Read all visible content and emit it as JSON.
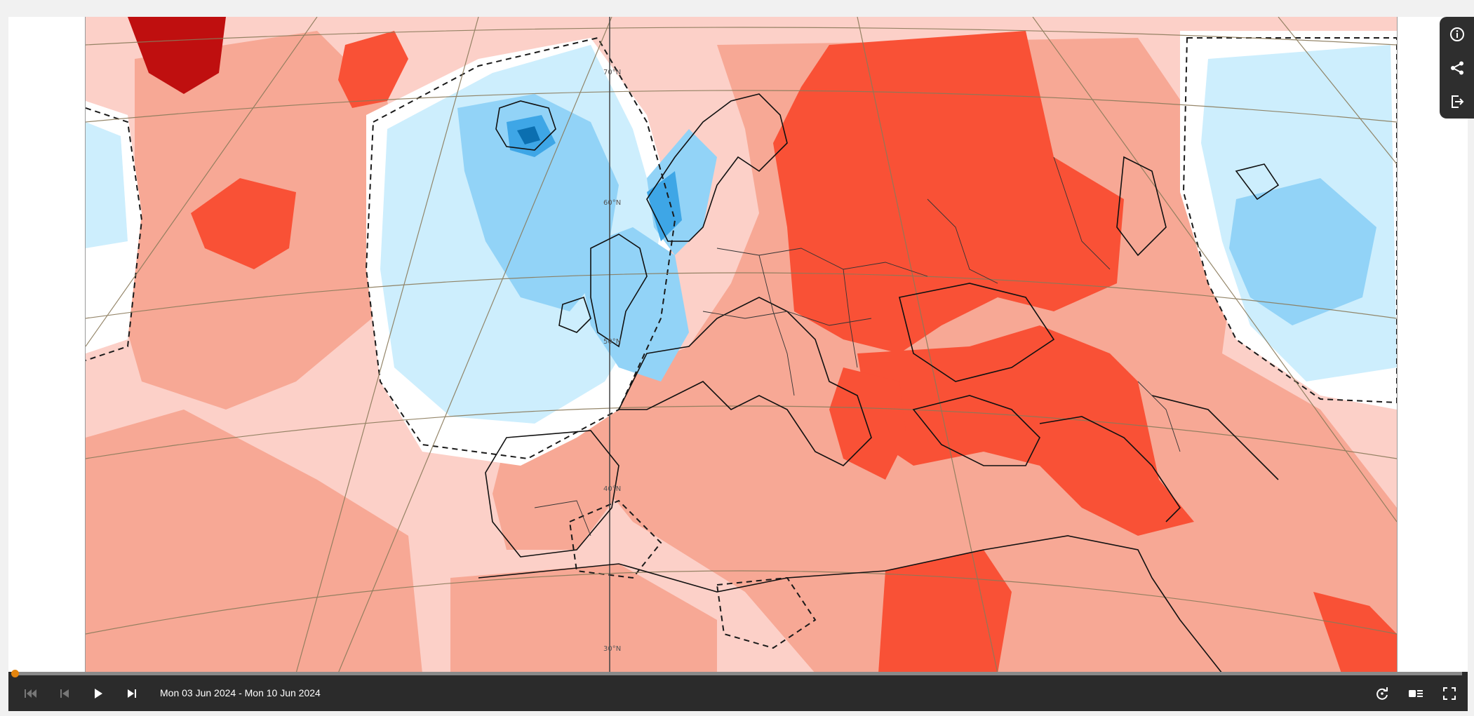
{
  "player": {
    "date_range": "Mon 03 Jun 2024 - Mon 10 Jun 2024",
    "progress": 0
  },
  "map": {
    "latitude_labels": [
      "70°N",
      "60°N",
      "50°N",
      "40°N",
      "30°N"
    ],
    "colors": {
      "warm_1": "#fcd0c8",
      "warm_2": "#f7a895",
      "warm_3": "#f95136",
      "warm_4": "#bf0f0f",
      "cool_1": "#cdeefd",
      "cool_2": "#92d3f7",
      "cool_3": "#3ea6e6",
      "cool_4": "#0b6fb0",
      "neutral": "#ffffff"
    }
  },
  "icons": {
    "info": "info-icon",
    "share": "share-icon",
    "export": "export-icon",
    "skip_start": "skip-to-start-icon",
    "step_back": "step-back-icon",
    "play": "play-icon",
    "step_forward": "step-forward-icon",
    "loop": "loop-icon",
    "settings": "playback-settings-icon",
    "fullscreen": "fullscreen-icon"
  },
  "colors": {
    "accent": "#e3850f",
    "controls_bg": "#2b2b2b"
  }
}
